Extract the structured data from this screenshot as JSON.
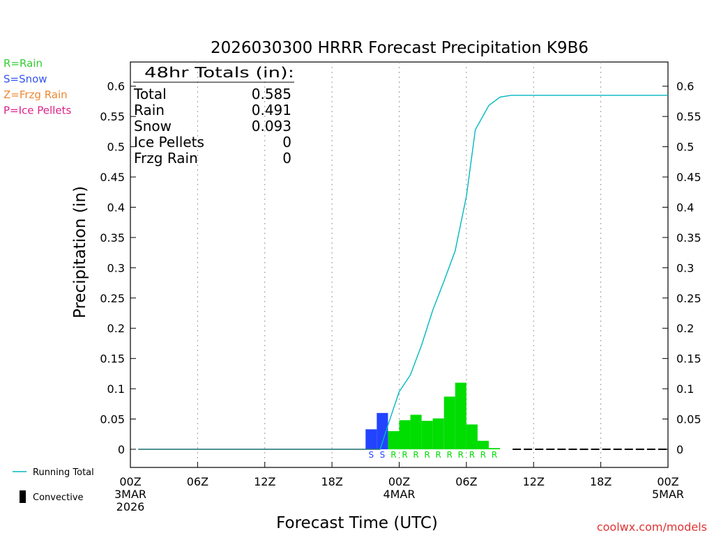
{
  "chart_data": {
    "type": "bar",
    "title": "2026030300 HRRR Forecast Precipitation K9B6",
    "xlabel": "Forecast Time (UTC)",
    "ylabel": "Precipitation (in)",
    "ylim": [
      -0.03,
      0.64
    ],
    "yticks": [
      0,
      0.05,
      0.1,
      0.15,
      0.2,
      0.25,
      0.3,
      0.35,
      0.4,
      0.45,
      0.5,
      0.55,
      0.6
    ],
    "ytick_labels": [
      "0",
      "0.05",
      "0.1",
      "0.15",
      "0.2",
      "0.25",
      "0.3",
      "0.35",
      "0.4",
      "0.45",
      "0.5",
      "0.55",
      "0.6"
    ],
    "xlim_hours": [
      0,
      48
    ],
    "xticks": [
      {
        "hour": 0,
        "line1": "00Z",
        "line2": "3MAR",
        "line3": "2026"
      },
      {
        "hour": 6,
        "line1": "06Z",
        "line2": "",
        "line3": ""
      },
      {
        "hour": 12,
        "line1": "12Z",
        "line2": "",
        "line3": ""
      },
      {
        "hour": 18,
        "line1": "18Z",
        "line2": "",
        "line3": ""
      },
      {
        "hour": 24,
        "line1": "00Z",
        "line2": "4MAR",
        "line3": ""
      },
      {
        "hour": 30,
        "line1": "06Z",
        "line2": "",
        "line3": ""
      },
      {
        "hour": 36,
        "line1": "12Z",
        "line2": "",
        "line3": ""
      },
      {
        "hour": 42,
        "line1": "18Z",
        "line2": "",
        "line3": ""
      },
      {
        "hour": 48,
        "line1": "00Z",
        "line2": "5MAR",
        "line3": ""
      }
    ],
    "grid": "vertical-dotted",
    "legend_top_left": [
      {
        "label": "R=Rain",
        "color": "#33cc33"
      },
      {
        "label": "S=Snow",
        "color": "#3355ee"
      },
      {
        "label": "Z=Frzg Rain",
        "color": "#ee8833"
      },
      {
        "label": "P=Ice Pellets",
        "color": "#dd2288"
      }
    ],
    "legend_bottom_left": [
      {
        "label": "Running Total",
        "kind": "line",
        "color": "#00b8c0"
      },
      {
        "label": "Convective",
        "kind": "bar",
        "color": "#000000"
      }
    ],
    "totals_box": {
      "title": "48hr Totals (in):",
      "rows": [
        {
          "label": "Total",
          "value": "0.585"
        },
        {
          "label": "Rain",
          "value": "0.491"
        },
        {
          "label": "Snow",
          "value": "0.093"
        },
        {
          "label": "Ice Pellets",
          "value": "0"
        },
        {
          "label": "Frzg Rain",
          "value": "0"
        }
      ]
    },
    "hourly_bars": [
      {
        "hour": 22,
        "value": 0.033,
        "type": "S",
        "color": "#2244ff"
      },
      {
        "hour": 23,
        "value": 0.06,
        "type": "S",
        "color": "#2244ff"
      },
      {
        "hour": 24,
        "value": 0.03,
        "type": "R",
        "color": "#00dd00"
      },
      {
        "hour": 25,
        "value": 0.048,
        "type": "R",
        "color": "#00dd00"
      },
      {
        "hour": 26,
        "value": 0.057,
        "type": "R",
        "color": "#00dd00"
      },
      {
        "hour": 27,
        "value": 0.047,
        "type": "R",
        "color": "#00dd00"
      },
      {
        "hour": 28,
        "value": 0.051,
        "type": "R",
        "color": "#00dd00"
      },
      {
        "hour": 29,
        "value": 0.087,
        "type": "R",
        "color": "#00dd00"
      },
      {
        "hour": 30,
        "value": 0.11,
        "type": "R",
        "color": "#00dd00"
      },
      {
        "hour": 31,
        "value": 0.041,
        "type": "R",
        "color": "#00dd00"
      },
      {
        "hour": 32,
        "value": 0.014,
        "type": "R",
        "color": "#00dd00"
      },
      {
        "hour": 33,
        "value": 0.002,
        "type": "R",
        "color": "#00dd00"
      }
    ],
    "running_total": {
      "color": "#00b8c0",
      "points": [
        [
          0.7,
          0
        ],
        [
          22.3,
          0
        ],
        [
          23.0,
          0.04
        ],
        [
          24.0,
          0.095
        ],
        [
          25.0,
          0.123
        ],
        [
          26.0,
          0.172
        ],
        [
          27.0,
          0.23
        ],
        [
          28.0,
          0.278
        ],
        [
          29.0,
          0.328
        ],
        [
          30.0,
          0.418
        ],
        [
          30.8,
          0.528
        ],
        [
          32.0,
          0.568
        ],
        [
          33.0,
          0.582
        ],
        [
          34.0,
          0.585
        ],
        [
          48.0,
          0.585
        ]
      ]
    },
    "zero_dashes_from_hour": 34,
    "credit": "coolwx.com/models"
  }
}
